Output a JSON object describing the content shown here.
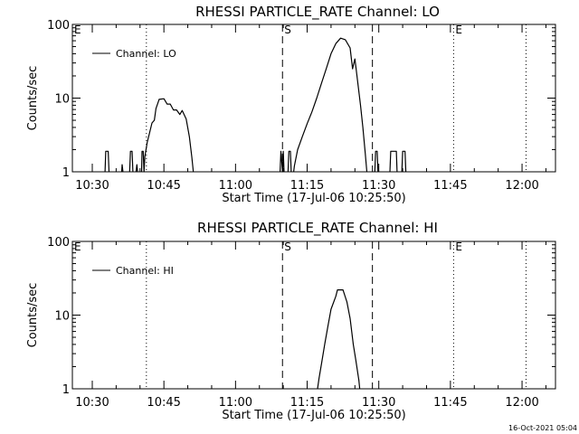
{
  "chart_data": [
    {
      "type": "line",
      "title": "RHESSI PARTICLE_RATE Channel: LO",
      "xlabel": "Start Time (17-Jul-06 10:25:50)",
      "ylabel": "Counts/sec",
      "yscale": "log",
      "ylim": [
        1,
        100
      ],
      "xlim": [
        "10:25:50",
        "12:07:00"
      ],
      "xticks": [
        "10:30",
        "10:45",
        "11:00",
        "11:15",
        "11:30",
        "11:45",
        "12:00"
      ],
      "yticks": [
        "1",
        "10",
        "100"
      ],
      "legend": {
        "position": "top-left",
        "label": "Channel: LO"
      },
      "markers": [
        {
          "label": "E",
          "x": "10:25:50",
          "style": "none"
        },
        {
          "label": "",
          "x": "10:41:20",
          "style": "dotted"
        },
        {
          "label": "S",
          "x": "11:09:50",
          "style": "dashed"
        },
        {
          "label": "",
          "x": "11:28:40",
          "style": "dashed"
        },
        {
          "label": "E",
          "x": "11:45:40",
          "style": "dotted"
        },
        {
          "label": "",
          "x": "12:00:50",
          "style": "dotted"
        }
      ],
      "series": [
        {
          "segments": [
            [
              [
                "10:32:40",
                1
              ],
              [
                "10:32:50",
                1.9
              ],
              [
                "10:33:20",
                1.9
              ],
              [
                "10:33:30",
                1
              ]
            ],
            [
              [
                "10:36:10",
                1
              ],
              [
                "10:36:15",
                1.25
              ],
              [
                "10:36:25",
                1
              ]
            ],
            [
              [
                "10:37:50",
                1
              ],
              [
                "10:38:00",
                1.9
              ],
              [
                "10:38:20",
                1.9
              ],
              [
                "10:38:30",
                1
              ]
            ],
            [
              [
                "10:39:10",
                1
              ],
              [
                "10:39:20",
                1.25
              ],
              [
                "10:39:30",
                1
              ]
            ],
            [
              [
                "10:40:20",
                1
              ],
              [
                "10:40:25",
                1.9
              ],
              [
                "10:40:40",
                1.9
              ],
              [
                "10:40:50",
                1
              ],
              [
                "10:41:00",
                1.6
              ],
              [
                "10:41:30",
                2.5
              ],
              [
                "10:42:30",
                4.6
              ],
              [
                "10:43:00",
                5
              ],
              [
                "10:43:20",
                7.2
              ],
              [
                "10:44:00",
                9.6
              ],
              [
                "10:45:00",
                9.8
              ],
              [
                "10:45:40",
                8.3
              ],
              [
                "10:46:20",
                8.3
              ],
              [
                "10:47:00",
                6.9
              ],
              [
                "10:47:40",
                6.9
              ],
              [
                "10:48:20",
                6
              ],
              [
                "10:48:50",
                6.8
              ],
              [
                "10:49:40",
                5.2
              ],
              [
                "10:50:20",
                3
              ],
              [
                "10:50:50",
                1.6
              ],
              [
                "10:51:10",
                1
              ]
            ],
            [
              [
                "11:09:20",
                1
              ],
              [
                "11:09:30",
                1.9
              ],
              [
                "11:09:50",
                1
              ],
              [
                "11:10:00",
                1.9
              ],
              [
                "11:10:10",
                1
              ]
            ],
            [
              [
                "11:11:00",
                1
              ],
              [
                "11:11:10",
                1.9
              ],
              [
                "11:11:30",
                1.9
              ],
              [
                "11:11:40",
                1
              ]
            ],
            [
              [
                "11:12:10",
                1
              ],
              [
                "11:12:20",
                1.2
              ],
              [
                "11:13:00",
                2
              ],
              [
                "11:14:00",
                3
              ],
              [
                "11:15:00",
                4.5
              ],
              [
                "11:16:00",
                6.5
              ],
              [
                "11:17:00",
                10
              ],
              [
                "11:18:00",
                16
              ],
              [
                "11:19:00",
                25
              ],
              [
                "11:20:00",
                40
              ],
              [
                "11:21:00",
                55
              ],
              [
                "11:22:00",
                65
              ],
              [
                "11:23:00",
                62
              ],
              [
                "11:24:00",
                48
              ],
              [
                "11:24:30",
                25
              ],
              [
                "11:25:00",
                34
              ],
              [
                "11:25:40",
                15
              ],
              [
                "11:26:10",
                8
              ],
              [
                "11:26:40",
                4
              ],
              [
                "11:27:10",
                1.8
              ],
              [
                "11:27:30",
                1
              ]
            ],
            [
              [
                "11:29:10",
                1
              ],
              [
                "11:29:20",
                1.9
              ],
              [
                "11:29:40",
                1.9
              ],
              [
                "11:29:50",
                1
              ]
            ],
            [
              [
                "11:32:20",
                1
              ],
              [
                "11:32:30",
                1.9
              ],
              [
                "11:33:40",
                1.9
              ],
              [
                "11:33:50",
                1
              ]
            ],
            [
              [
                "11:34:50",
                1
              ],
              [
                "11:35:00",
                1.9
              ],
              [
                "11:35:30",
                1.9
              ],
              [
                "11:35:40",
                1
              ]
            ]
          ]
        }
      ]
    },
    {
      "type": "line",
      "title": "RHESSI PARTICLE_RATE Channel: HI",
      "xlabel": "Start Time (17-Jul-06 10:25:50)",
      "ylabel": "Counts/sec",
      "yscale": "log",
      "ylim": [
        1,
        100
      ],
      "xlim": [
        "10:25:50",
        "12:07:00"
      ],
      "xticks": [
        "10:30",
        "10:45",
        "11:00",
        "11:15",
        "11:30",
        "11:45",
        "12:00"
      ],
      "yticks": [
        "1",
        "10",
        "100"
      ],
      "legend": {
        "position": "top-left",
        "label": "Channel: HI"
      },
      "markers": [
        {
          "label": "E",
          "x": "10:25:50",
          "style": "none"
        },
        {
          "label": "",
          "x": "10:41:20",
          "style": "dotted"
        },
        {
          "label": "S",
          "x": "11:09:50",
          "style": "dashed"
        },
        {
          "label": "",
          "x": "11:28:40",
          "style": "dashed"
        },
        {
          "label": "E",
          "x": "11:45:40",
          "style": "dotted"
        },
        {
          "label": "",
          "x": "12:00:50",
          "style": "dotted"
        }
      ],
      "series": [
        {
          "segments": [
            [
              [
                "11:17:10",
                1
              ],
              [
                "11:17:30",
                1.4
              ],
              [
                "11:18:00",
                2.2
              ],
              [
                "11:18:40",
                4
              ],
              [
                "11:19:20",
                7
              ],
              [
                "11:20:00",
                12
              ],
              [
                "11:21:00",
                18
              ],
              [
                "11:21:20",
                22
              ],
              [
                "11:22:30",
                22
              ],
              [
                "11:23:20",
                15
              ],
              [
                "11:24:00",
                9
              ],
              [
                "11:24:40",
                4
              ],
              [
                "11:25:10",
                2.5
              ],
              [
                "11:25:50",
                1.3
              ],
              [
                "11:26:00",
                1
              ]
            ]
          ]
        }
      ]
    }
  ],
  "footer": {
    "timestamp": "16-Oct-2021 05:04"
  }
}
